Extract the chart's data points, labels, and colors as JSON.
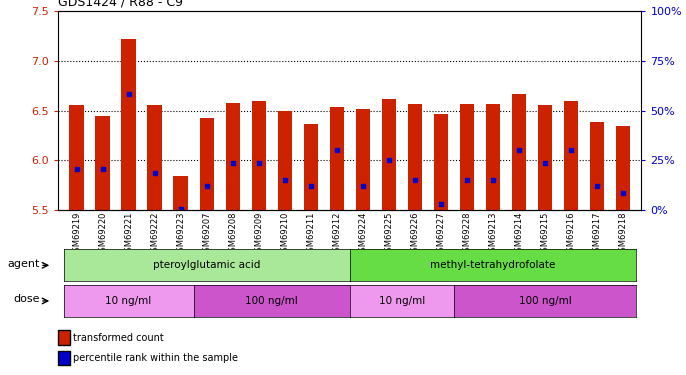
{
  "title": "GDS1424 / R88 - C9",
  "samples": [
    "GSM69219",
    "GSM69220",
    "GSM69221",
    "GSM69222",
    "GSM69223",
    "GSM69207",
    "GSM69208",
    "GSM69209",
    "GSM69210",
    "GSM69211",
    "GSM69212",
    "GSM69224",
    "GSM69225",
    "GSM69226",
    "GSM69227",
    "GSM69228",
    "GSM69213",
    "GSM69214",
    "GSM69215",
    "GSM69216",
    "GSM69217",
    "GSM69218"
  ],
  "bar_heights": [
    6.56,
    6.45,
    7.22,
    6.56,
    5.84,
    6.43,
    6.58,
    6.6,
    6.5,
    6.37,
    6.54,
    6.52,
    6.62,
    6.57,
    6.47,
    6.57,
    6.57,
    6.67,
    6.56,
    6.6,
    6.39,
    6.35
  ],
  "blue_markers": [
    5.91,
    5.91,
    6.67,
    5.87,
    5.51,
    5.74,
    5.97,
    5.97,
    5.8,
    5.74,
    6.1,
    5.74,
    6.0,
    5.8,
    5.56,
    5.8,
    5.8,
    6.1,
    5.97,
    6.1,
    5.74,
    5.67
  ],
  "y_min": 5.5,
  "y_max": 7.5,
  "y_ticks_left": [
    5.5,
    6.0,
    6.5,
    7.0,
    7.5
  ],
  "y_ticks_right_labels": [
    "0%",
    "25%",
    "50%",
    "75%",
    "100%"
  ],
  "y_ticks_right_vals": [
    5.5,
    6.0,
    6.5,
    7.0,
    7.5
  ],
  "bar_color": "#cc2200",
  "marker_color": "#0000cc",
  "agent_groups": [
    {
      "label": "pteroylglutamic acid",
      "start": 0,
      "end": 10,
      "color": "#aae899"
    },
    {
      "label": "methyl-tetrahydrofolate",
      "start": 11,
      "end": 21,
      "color": "#66dd44"
    }
  ],
  "dose_groups": [
    {
      "label": "10 ng/ml",
      "start": 0,
      "end": 4,
      "color": "#ee99ee"
    },
    {
      "label": "100 ng/ml",
      "start": 5,
      "end": 10,
      "color": "#cc55cc"
    },
    {
      "label": "10 ng/ml",
      "start": 11,
      "end": 14,
      "color": "#ee99ee"
    },
    {
      "label": "100 ng/ml",
      "start": 15,
      "end": 21,
      "color": "#cc55cc"
    }
  ],
  "left_label_color": "#cc2200",
  "right_label_color": "#0000cc",
  "legend_items": [
    {
      "label": "transformed count",
      "color": "#cc2200"
    },
    {
      "label": "percentile rank within the sample",
      "color": "#0000cc"
    }
  ],
  "agent_row_label": "agent",
  "dose_row_label": "dose"
}
